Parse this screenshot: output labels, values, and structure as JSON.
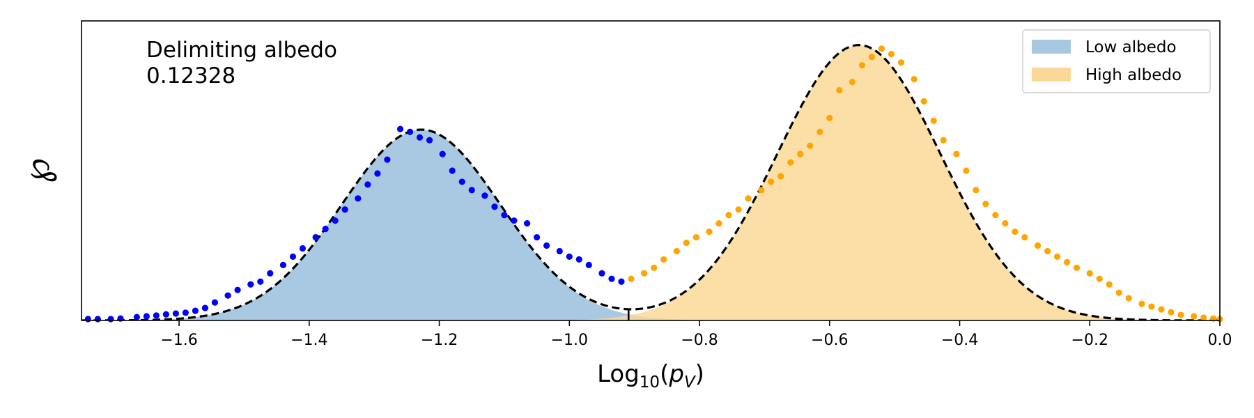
{
  "chart_data": {
    "type": "area",
    "xlabel": {
      "base": "Log",
      "sub": "10",
      "open": "(",
      "var": "p",
      "varsub": "V",
      "close": ")"
    },
    "ylabel": "℘",
    "xlim": [
      -1.75,
      0.0
    ],
    "ylim": [
      0,
      1.08
    ],
    "xticks": [
      -1.6,
      -1.4,
      -1.2,
      -1.0,
      -0.8,
      -0.6,
      -0.4,
      -0.2,
      0.0
    ],
    "xtick_labels": [
      "−1.6",
      "−1.4",
      "−1.2",
      "−1.0",
      "−0.8",
      "−0.6",
      "−0.4",
      "−0.2",
      "0.0"
    ],
    "annotation": {
      "line1": "Delimiting albedo",
      "line2": "0.12328"
    },
    "delimiter_x": -0.909,
    "legend": {
      "placement": "top-right",
      "entries": [
        {
          "label": "Low albedo",
          "color": "#a6c8e0"
        },
        {
          "label": "High albedo",
          "color": "#fcd898"
        }
      ]
    },
    "components": [
      {
        "name": "Low albedo",
        "weight": 0.688,
        "mu": -1.228,
        "sigma": 0.122,
        "fill": "#a6c8e0"
      },
      {
        "name": "High albedo",
        "weight": 0.993,
        "mu": -0.555,
        "sigma": 0.125,
        "fill": "#fcd898"
      }
    ],
    "fit_line": {
      "style": "dashed",
      "color": "#000000"
    },
    "low_points": {
      "color": "#0000ff",
      "x": [
        -1.74,
        -1.725,
        -1.705,
        -1.69,
        -1.665,
        -1.65,
        -1.635,
        -1.62,
        -1.605,
        -1.59,
        -1.575,
        -1.56,
        -1.545,
        -1.525,
        -1.51,
        -1.49,
        -1.475,
        -1.46,
        -1.44,
        -1.425,
        -1.41,
        -1.39,
        -1.375,
        -1.36,
        -1.345,
        -1.325,
        -1.31,
        -1.295,
        -1.28,
        -1.26,
        -1.245,
        -1.23,
        -1.215,
        -1.195,
        -1.18,
        -1.165,
        -1.15,
        -1.13,
        -1.115,
        -1.1,
        -1.085,
        -1.065,
        -1.05,
        -1.035,
        -1.015,
        -1.0,
        -0.985,
        -0.97,
        -0.95,
        -0.935,
        -0.92
      ],
      "y": [
        0.005,
        0.005,
        0.005,
        0.007,
        0.012,
        0.015,
        0.018,
        0.022,
        0.025,
        0.028,
        0.035,
        0.045,
        0.065,
        0.09,
        0.11,
        0.13,
        0.14,
        0.17,
        0.2,
        0.23,
        0.26,
        0.3,
        0.33,
        0.36,
        0.4,
        0.44,
        0.49,
        0.53,
        0.58,
        0.69,
        0.68,
        0.66,
        0.65,
        0.6,
        0.54,
        0.5,
        0.47,
        0.45,
        0.41,
        0.38,
        0.36,
        0.35,
        0.3,
        0.27,
        0.25,
        0.23,
        0.22,
        0.2,
        0.17,
        0.15,
        0.14
      ]
    },
    "high_points": {
      "color": "#ffa500",
      "x": [
        -0.905,
        -0.885,
        -0.87,
        -0.855,
        -0.835,
        -0.82,
        -0.805,
        -0.785,
        -0.77,
        -0.755,
        -0.74,
        -0.725,
        -0.705,
        -0.69,
        -0.675,
        -0.66,
        -0.645,
        -0.63,
        -0.615,
        -0.6,
        -0.585,
        -0.565,
        -0.55,
        -0.535,
        -0.52,
        -0.505,
        -0.49,
        -0.47,
        -0.455,
        -0.44,
        -0.425,
        -0.405,
        -0.39,
        -0.375,
        -0.36,
        -0.345,
        -0.33,
        -0.315,
        -0.3,
        -0.28,
        -0.265,
        -0.25,
        -0.235,
        -0.22,
        -0.2,
        -0.185,
        -0.17,
        -0.155,
        -0.14,
        -0.12,
        -0.105,
        -0.09,
        -0.075,
        -0.06,
        -0.04,
        -0.025,
        -0.01,
        0.0
      ],
      "y": [
        0.15,
        0.17,
        0.19,
        0.22,
        0.25,
        0.28,
        0.3,
        0.32,
        0.35,
        0.38,
        0.4,
        0.44,
        0.47,
        0.5,
        0.52,
        0.57,
        0.6,
        0.63,
        0.68,
        0.73,
        0.83,
        0.86,
        0.92,
        0.95,
        0.98,
        0.96,
        0.93,
        0.87,
        0.79,
        0.72,
        0.65,
        0.6,
        0.54,
        0.47,
        0.42,
        0.38,
        0.35,
        0.32,
        0.3,
        0.27,
        0.25,
        0.23,
        0.21,
        0.19,
        0.17,
        0.15,
        0.13,
        0.1,
        0.08,
        0.06,
        0.05,
        0.04,
        0.03,
        0.02,
        0.015,
        0.01,
        0.007,
        0.005
      ]
    }
  }
}
